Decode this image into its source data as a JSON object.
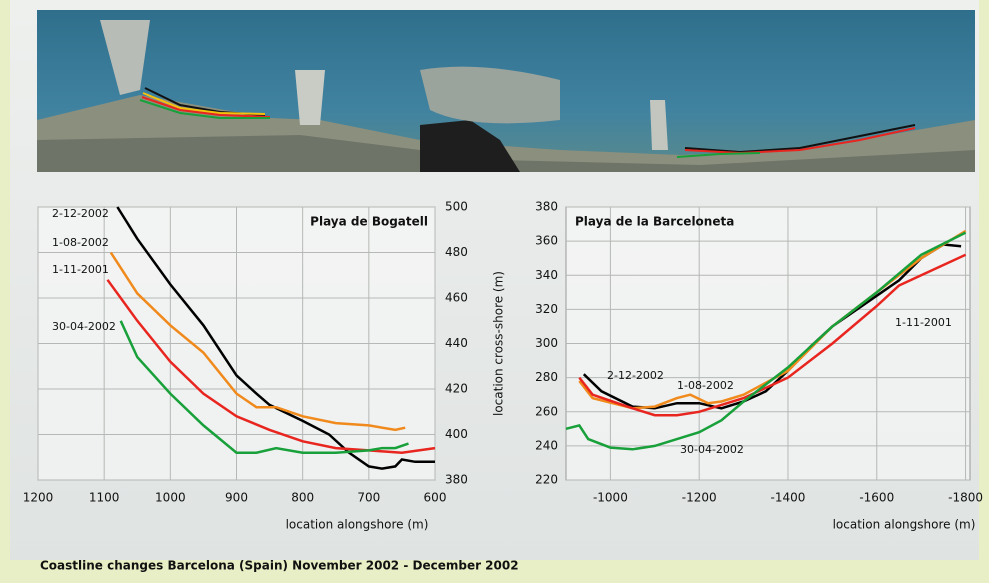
{
  "chart_data": [
    {
      "type": "line",
      "title": "Playa de Bogatell",
      "xlabel": "location alongshore (m)",
      "ylabel": "location cross-shore (m)",
      "xlim": [
        1200,
        600
      ],
      "ylim": [
        380,
        500
      ],
      "xticks": [
        1200,
        1100,
        1000,
        900,
        800,
        700,
        600
      ],
      "yticks": [
        380,
        400,
        420,
        440,
        460,
        480,
        500
      ],
      "yaxis_side": "right",
      "grid": true,
      "series": [
        {
          "name": "2-12-2002",
          "color": "#000000",
          "x": [
            1080,
            1050,
            1000,
            950,
            900,
            870,
            850,
            800,
            760,
            730,
            700,
            680,
            660,
            650,
            630,
            600
          ],
          "values": [
            500,
            486,
            466,
            448,
            426,
            418,
            413,
            406,
            400,
            392,
            386,
            385,
            386,
            389,
            388,
            388
          ]
        },
        {
          "name": "1-08-2002",
          "color": "#f08a1c",
          "x": [
            1090,
            1050,
            1000,
            950,
            900,
            870,
            840,
            800,
            750,
            700,
            660,
            645
          ],
          "values": [
            480,
            462,
            448,
            436,
            418,
            412,
            412,
            408,
            405,
            404,
            402,
            403
          ]
        },
        {
          "name": "1-11-2001",
          "color": "#e8251f",
          "x": [
            1095,
            1050,
            1000,
            950,
            900,
            850,
            800,
            750,
            700,
            650,
            600
          ],
          "values": [
            468,
            450,
            432,
            418,
            408,
            402,
            397,
            394,
            393,
            392,
            394
          ]
        },
        {
          "name": "30-04-2002",
          "color": "#18a03a",
          "x": [
            1075,
            1050,
            1000,
            950,
            900,
            870,
            840,
            800,
            750,
            700,
            680,
            660,
            640
          ],
          "values": [
            450,
            434,
            418,
            404,
            392,
            392,
            394,
            392,
            392,
            393,
            394,
            394,
            396
          ]
        }
      ]
    },
    {
      "type": "line",
      "title": "Playa de la Barceloneta",
      "xlabel": "location alongshore (m)",
      "xlim": [
        -900,
        -1810
      ],
      "ylim": [
        220,
        380
      ],
      "xticks": [
        -1000,
        -1200,
        -1400,
        -1600,
        -1800
      ],
      "yticks": [
        220,
        240,
        260,
        280,
        300,
        320,
        340,
        360,
        380
      ],
      "yaxis_side": "left",
      "grid": true,
      "series": [
        {
          "name": "2-12-2002",
          "color": "#000000",
          "x": [
            -940,
            -980,
            -1050,
            -1100,
            -1150,
            -1200,
            -1250,
            -1300,
            -1350,
            -1400,
            -1450,
            -1500,
            -1600,
            -1650,
            -1700,
            -1750,
            -1790
          ],
          "values": [
            282,
            272,
            263,
            262,
            265,
            265,
            262,
            266,
            272,
            284,
            298,
            310,
            328,
            337,
            350,
            358,
            357
          ]
        },
        {
          "name": "1-08-2002",
          "color": "#f08a1c",
          "x": [
            -930,
            -960,
            -1050,
            -1100,
            -1150,
            -1180,
            -1220,
            -1250,
            -1300,
            -1400,
            -1500,
            -1600,
            -1700,
            -1800
          ],
          "values": [
            278,
            268,
            262,
            263,
            268,
            270,
            265,
            266,
            270,
            284,
            310,
            330,
            350,
            366
          ]
        },
        {
          "name": "1-11-2001",
          "color": "#e8251f",
          "x": [
            -930,
            -960,
            -1050,
            -1100,
            -1150,
            -1200,
            -1300,
            -1400,
            -1500,
            -1600,
            -1650,
            -1700,
            -1800
          ],
          "values": [
            280,
            270,
            262,
            258,
            258,
            260,
            268,
            280,
            300,
            322,
            334,
            340,
            352
          ]
        },
        {
          "name": "30-04-2002",
          "color": "#18a03a",
          "x": [
            -900,
            -930,
            -950,
            -1000,
            -1050,
            -1100,
            -1150,
            -1200,
            -1250,
            -1300,
            -1400,
            -1500,
            -1600,
            -1700,
            -1800
          ],
          "values": [
            250,
            252,
            244,
            239,
            238,
            240,
            244,
            248,
            255,
            266,
            286,
            310,
            330,
            352,
            365
          ]
        }
      ]
    }
  ],
  "caption": "Coastline changes Barcelona (Spain) November 2002 - December 2002"
}
